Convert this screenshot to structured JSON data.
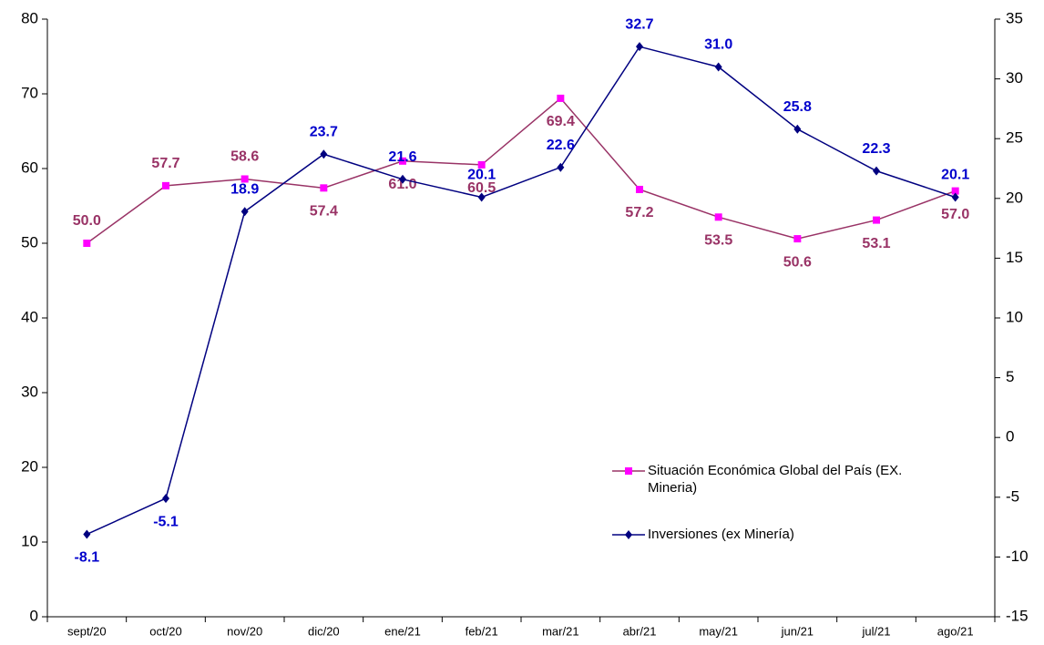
{
  "chart_data": {
    "type": "line",
    "categories": [
      "sept/20",
      "oct/20",
      "nov/20",
      "dic/20",
      "ene/21",
      "feb/21",
      "mar/21",
      "abr/21",
      "may/21",
      "jun/21",
      "jul/21",
      "ago/21"
    ],
    "series": [
      {
        "name": "Situación Económica Global del País (EX. Mineria)",
        "color": "#993366",
        "marker_color": "#ff00ff",
        "marker": "square",
        "values": [
          50.0,
          57.7,
          58.6,
          57.4,
          61.0,
          60.5,
          69.4,
          57.2,
          53.5,
          50.6,
          53.1,
          57.0
        ],
        "value_labels": [
          "50.0",
          "57.7",
          "58.6",
          "57.4",
          "61.0",
          "60.5",
          "69.4",
          "57.2",
          "53.5",
          "50.6",
          "53.1",
          "57.0"
        ]
      },
      {
        "name": "Inversiones (ex Minería)",
        "color": "#000080",
        "marker_color": "#000080",
        "label_color": "#0000cc",
        "marker": "diamond",
        "axis": "y2",
        "values": [
          -8.1,
          -5.1,
          18.9,
          23.7,
          21.6,
          20.1,
          22.6,
          32.7,
          31.0,
          25.8,
          22.3,
          20.1
        ],
        "value_labels": [
          "-8.1",
          "-5.1",
          "18.9",
          "23.7",
          "21.6",
          "20.1",
          "22.6",
          "32.7",
          "31.0",
          "25.8",
          "22.3",
          "20.1"
        ]
      }
    ],
    "ylim": [
      0,
      80
    ],
    "yticks": [
      0,
      10,
      20,
      30,
      40,
      50,
      60,
      70,
      80
    ],
    "y2lim": [
      -15,
      35
    ],
    "y2ticks": [
      -15,
      -10,
      -5,
      0,
      5,
      10,
      15,
      20,
      25,
      30,
      35
    ],
    "grid": false
  }
}
